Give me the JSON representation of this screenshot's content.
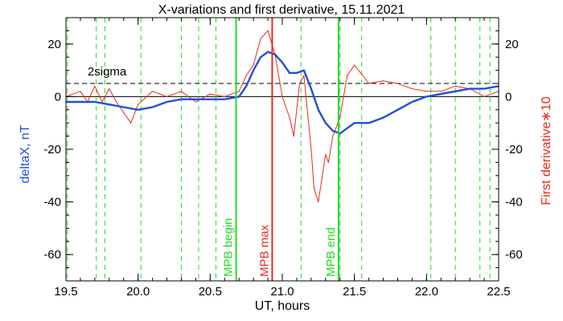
{
  "chart_data": {
    "type": "line",
    "title": "X-variations and first derivative, 15.11.2021",
    "xlabel": "UT, hours",
    "ylabel_left": "deltaX, nT",
    "ylabel_right": "First derivative∗10",
    "xlim": [
      19.5,
      22.5
    ],
    "ylim": [
      -70,
      30
    ],
    "x_ticks": [
      "19.5",
      "20.0",
      "20.5",
      "21.0",
      "21.5",
      "22.0",
      "22.5"
    ],
    "y_ticks": [
      "20",
      "0",
      "-20",
      "-40",
      "-60"
    ],
    "grid": false,
    "colors": {
      "deltaX": "#1f4fd8",
      "derivative": "#e8291c",
      "green_marker": "#22dd22",
      "red_marker": "#e8291c",
      "axes": "#000000"
    },
    "series": [
      {
        "name": "deltaX, nT",
        "color": "#1f4fd8",
        "x": [
          19.5,
          19.6,
          19.7,
          19.8,
          19.9,
          20.0,
          20.1,
          20.2,
          20.3,
          20.4,
          20.5,
          20.6,
          20.7,
          20.75,
          20.8,
          20.85,
          20.9,
          20.95,
          21.0,
          21.05,
          21.1,
          21.15,
          21.2,
          21.25,
          21.3,
          21.35,
          21.4,
          21.45,
          21.5,
          21.6,
          21.7,
          21.8,
          21.9,
          22.0,
          22.1,
          22.2,
          22.3,
          22.4,
          22.5
        ],
        "values": [
          -2,
          -2,
          -2,
          -3,
          -4,
          -5,
          -4,
          -2,
          -1,
          -1,
          -1,
          -1,
          0,
          4,
          10,
          15,
          17,
          16,
          13,
          9,
          9,
          10,
          3,
          -5,
          -10,
          -13,
          -14,
          -12,
          -10,
          -10,
          -8,
          -5,
          -2,
          0,
          1,
          2,
          3,
          3,
          4
        ]
      },
      {
        "name": "First derivative∗10",
        "color": "#e8291c",
        "x": [
          19.5,
          19.6,
          19.65,
          19.7,
          19.75,
          19.8,
          19.85,
          19.9,
          19.95,
          20.0,
          20.1,
          20.2,
          20.3,
          20.4,
          20.5,
          20.6,
          20.7,
          20.75,
          20.8,
          20.85,
          20.9,
          20.95,
          21.0,
          21.05,
          21.08,
          21.1,
          21.12,
          21.15,
          21.2,
          21.22,
          21.25,
          21.3,
          21.32,
          21.35,
          21.4,
          21.45,
          21.5,
          21.6,
          21.7,
          21.8,
          21.9,
          22.0,
          22.1,
          22.2,
          22.3,
          22.4,
          22.5
        ],
        "values": [
          0,
          2,
          -2,
          4,
          -2,
          3,
          -2,
          -6,
          -10,
          -3,
          2,
          0,
          2,
          -2,
          1,
          0,
          2,
          8,
          12,
          22,
          25,
          16,
          0,
          -8,
          -15,
          -5,
          5,
          8,
          -20,
          -35,
          -40,
          -22,
          -25,
          -15,
          -8,
          8,
          12,
          5,
          6,
          5,
          3,
          2,
          2,
          4,
          3,
          0,
          2
        ]
      }
    ],
    "hlines": [
      {
        "label": "2sigma",
        "y": 5,
        "style": "dashed"
      },
      {
        "label": "",
        "y": 0,
        "style": "solid"
      }
    ],
    "dashed_vlines": [
      19.51,
      19.71,
      19.77,
      20.02,
      20.3,
      20.42,
      20.54,
      21.13,
      21.4,
      21.55,
      22.03,
      22.2,
      22.37,
      22.44
    ],
    "vertical_markers": [
      {
        "label": "MPB begin",
        "x": 20.68,
        "color": "#22dd22"
      },
      {
        "label": "MPB max",
        "x": 20.93,
        "color": "#e8291c"
      },
      {
        "label": "MPB end",
        "x": 21.39,
        "color": "#22dd22"
      }
    ]
  }
}
